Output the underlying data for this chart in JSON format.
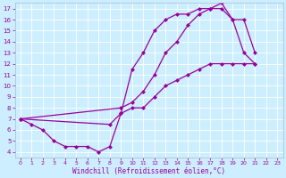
{
  "xlabel": "Windchill (Refroidissement éolien,°C)",
  "bg_color": "#cceeff",
  "line_color": "#990099",
  "grid_color": "#ffffff",
  "line1_x": [
    0,
    1,
    2,
    3,
    4,
    5,
    6,
    7,
    8,
    9,
    10,
    11,
    12,
    13,
    14,
    15,
    16,
    17,
    18,
    19,
    20,
    21
  ],
  "line1_y": [
    7,
    6.5,
    6,
    5,
    4.5,
    4.5,
    4.5,
    4,
    4.5,
    7.5,
    11.5,
    13,
    15,
    16,
    16.5,
    16.5,
    17,
    17,
    17,
    16,
    13,
    12
  ],
  "line2_x": [
    0,
    8,
    9,
    10,
    11,
    12,
    13,
    14,
    15,
    16,
    17,
    18,
    19,
    20,
    21
  ],
  "line2_y": [
    7,
    6.5,
    7.5,
    8,
    8,
    9,
    10,
    10.5,
    11,
    11.5,
    12,
    12,
    12,
    12,
    12
  ],
  "line3_x": [
    0,
    9,
    10,
    11,
    12,
    13,
    14,
    15,
    16,
    17,
    18,
    19,
    20,
    21
  ],
  "line3_y": [
    7,
    8,
    8.5,
    9.5,
    11,
    13,
    14,
    15.5,
    16.5,
    17,
    17.5,
    16,
    16,
    13
  ],
  "xlim": [
    -0.5,
    23.5
  ],
  "ylim": [
    3.5,
    17.5
  ],
  "yticks": [
    4,
    5,
    6,
    7,
    8,
    9,
    10,
    11,
    12,
    13,
    14,
    15,
    16,
    17
  ],
  "xticks": [
    0,
    1,
    2,
    3,
    4,
    5,
    6,
    7,
    8,
    9,
    10,
    11,
    12,
    13,
    14,
    15,
    16,
    17,
    18,
    19,
    20,
    21,
    22,
    23
  ],
  "markersize": 2.5,
  "linewidth": 0.9
}
